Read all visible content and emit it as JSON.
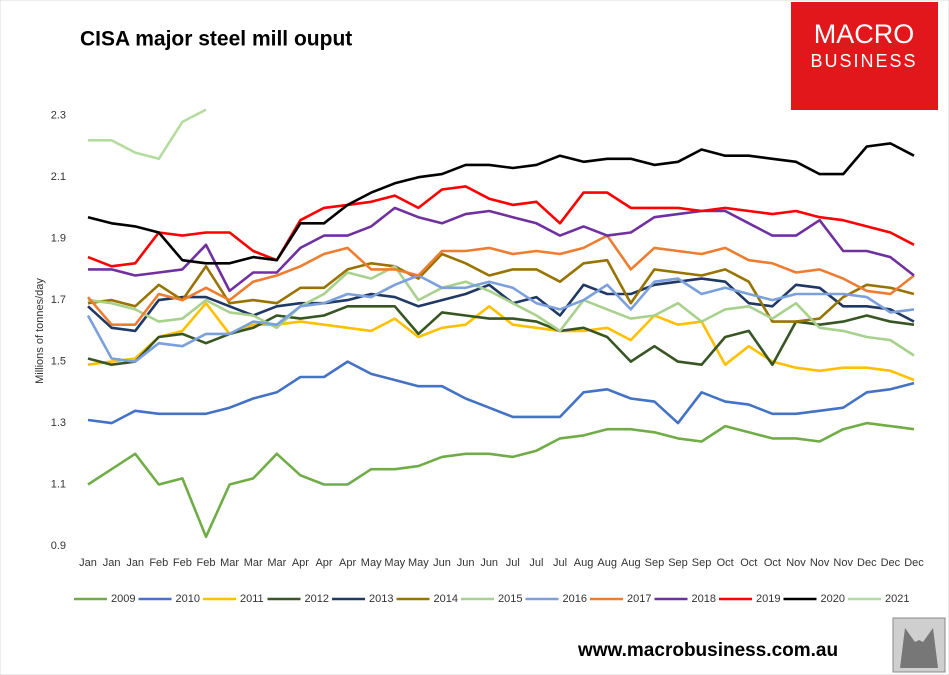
{
  "chart_data": {
    "type": "line",
    "title": "CISA major steel mill ouput",
    "y_label": "Millions of tonnes/day",
    "categories": [
      "Jan",
      "Jan",
      "Jan",
      "Feb",
      "Feb",
      "Feb",
      "Mar",
      "Mar",
      "Mar",
      "Apr",
      "Apr",
      "Apr",
      "May",
      "May",
      "May",
      "Jun",
      "Jun",
      "Jun",
      "Jul",
      "Jul",
      "Jul",
      "Aug",
      "Aug",
      "Aug",
      "Sep",
      "Sep",
      "Sep",
      "Oct",
      "Oct",
      "Oct",
      "Nov",
      "Nov",
      "Nov",
      "Dec",
      "Dec",
      "Dec"
    ],
    "ylim": [
      0.9,
      2.4
    ],
    "yticks": [
      0.9,
      1.1,
      1.3,
      1.5,
      1.7,
      1.9,
      2.1,
      2.3
    ],
    "grid": false,
    "legend": "bottom",
    "series": [
      {
        "name": "2009",
        "color": "#70ad47",
        "values": [
          1.1,
          1.15,
          1.2,
          1.1,
          1.12,
          0.93,
          1.1,
          1.12,
          1.2,
          1.13,
          1.1,
          1.1,
          1.15,
          1.15,
          1.16,
          1.19,
          1.2,
          1.2,
          1.19,
          1.21,
          1.25,
          1.26,
          1.28,
          1.28,
          1.27,
          1.25,
          1.24,
          1.29,
          1.27,
          1.25,
          1.25,
          1.24,
          1.28,
          1.3,
          1.29,
          1.28
        ]
      },
      {
        "name": "2010",
        "color": "#4472c4",
        "values": [
          1.31,
          1.3,
          1.34,
          1.33,
          1.33,
          1.33,
          1.35,
          1.38,
          1.4,
          1.45,
          1.45,
          1.5,
          1.46,
          1.44,
          1.42,
          1.42,
          1.38,
          1.35,
          1.32,
          1.32,
          1.32,
          1.4,
          1.41,
          1.38,
          1.37,
          1.3,
          1.4,
          1.37,
          1.36,
          1.33,
          1.33,
          1.34,
          1.35,
          1.4,
          1.41,
          1.43
        ]
      },
      {
        "name": "2011",
        "color": "#ffc000",
        "values": [
          1.49,
          1.5,
          1.51,
          1.58,
          1.6,
          1.69,
          1.59,
          1.62,
          1.62,
          1.63,
          1.62,
          1.61,
          1.6,
          1.64,
          1.58,
          1.61,
          1.62,
          1.68,
          1.62,
          1.61,
          1.6,
          1.6,
          1.61,
          1.57,
          1.65,
          1.62,
          1.63,
          1.49,
          1.55,
          1.5,
          1.48,
          1.47,
          1.48,
          1.48,
          1.47,
          1.44
        ]
      },
      {
        "name": "2012",
        "color": "#375623",
        "values": [
          1.51,
          1.49,
          1.5,
          1.58,
          1.59,
          1.56,
          1.59,
          1.61,
          1.65,
          1.64,
          1.65,
          1.68,
          1.68,
          1.68,
          1.59,
          1.66,
          1.65,
          1.64,
          1.64,
          1.63,
          1.6,
          1.61,
          1.58,
          1.5,
          1.55,
          1.5,
          1.49,
          1.58,
          1.6,
          1.49,
          1.63,
          1.62,
          1.63,
          1.65,
          1.63,
          1.62
        ]
      },
      {
        "name": "2013",
        "color": "#203864",
        "values": [
          1.68,
          1.61,
          1.6,
          1.7,
          1.71,
          1.71,
          1.68,
          1.65,
          1.68,
          1.69,
          1.69,
          1.7,
          1.72,
          1.71,
          1.68,
          1.7,
          1.72,
          1.75,
          1.69,
          1.71,
          1.65,
          1.75,
          1.72,
          1.72,
          1.75,
          1.76,
          1.77,
          1.76,
          1.69,
          1.68,
          1.75,
          1.74,
          1.68,
          1.68,
          1.67,
          1.63
        ]
      },
      {
        "name": "2014",
        "color": "#997300",
        "values": [
          1.69,
          1.7,
          1.68,
          1.75,
          1.7,
          1.81,
          1.69,
          1.7,
          1.69,
          1.74,
          1.74,
          1.8,
          1.82,
          1.81,
          1.77,
          1.85,
          1.82,
          1.78,
          1.8,
          1.8,
          1.76,
          1.82,
          1.83,
          1.69,
          1.8,
          1.79,
          1.78,
          1.8,
          1.76,
          1.63,
          1.63,
          1.64,
          1.71,
          1.75,
          1.74,
          1.72
        ]
      },
      {
        "name": "2015",
        "color": "#a9d18e",
        "values": [
          1.7,
          1.69,
          1.67,
          1.63,
          1.64,
          1.7,
          1.66,
          1.65,
          1.61,
          1.68,
          1.72,
          1.79,
          1.77,
          1.81,
          1.7,
          1.74,
          1.76,
          1.73,
          1.69,
          1.65,
          1.6,
          1.7,
          1.67,
          1.64,
          1.65,
          1.69,
          1.63,
          1.67,
          1.68,
          1.64,
          1.69,
          1.61,
          1.6,
          1.58,
          1.57,
          1.52
        ]
      },
      {
        "name": "2016",
        "color": "#7ba0dc",
        "values": [
          1.65,
          1.51,
          1.5,
          1.56,
          1.55,
          1.59,
          1.59,
          1.63,
          1.62,
          1.68,
          1.69,
          1.72,
          1.71,
          1.75,
          1.78,
          1.74,
          1.74,
          1.76,
          1.74,
          1.69,
          1.67,
          1.7,
          1.75,
          1.67,
          1.76,
          1.77,
          1.72,
          1.74,
          1.72,
          1.7,
          1.72,
          1.72,
          1.72,
          1.71,
          1.66,
          1.67
        ]
      },
      {
        "name": "2017",
        "color": "#ed7d31",
        "values": [
          1.71,
          1.62,
          1.62,
          1.72,
          1.7,
          1.74,
          1.7,
          1.76,
          1.78,
          1.81,
          1.85,
          1.87,
          1.8,
          1.8,
          1.78,
          1.86,
          1.86,
          1.87,
          1.85,
          1.86,
          1.85,
          1.87,
          1.91,
          1.8,
          1.87,
          1.86,
          1.85,
          1.87,
          1.83,
          1.82,
          1.79,
          1.8,
          1.77,
          1.73,
          1.72,
          1.78
        ]
      },
      {
        "name": "2018",
        "color": "#7030a0",
        "values": [
          1.8,
          1.8,
          1.78,
          1.79,
          1.8,
          1.88,
          1.73,
          1.79,
          1.79,
          1.87,
          1.91,
          1.91,
          1.94,
          2.0,
          1.97,
          1.95,
          1.98,
          1.99,
          1.97,
          1.95,
          1.91,
          1.94,
          1.91,
          1.92,
          1.97,
          1.98,
          1.99,
          1.99,
          1.95,
          1.91,
          1.91,
          1.96,
          1.86,
          1.86,
          1.84,
          1.78
        ]
      },
      {
        "name": "2019",
        "color": "#ff0000",
        "values": [
          1.84,
          1.81,
          1.82,
          1.92,
          1.91,
          1.92,
          1.92,
          1.86,
          1.83,
          1.96,
          2.0,
          2.01,
          2.02,
          2.04,
          2.0,
          2.06,
          2.07,
          2.03,
          2.01,
          2.02,
          1.95,
          2.05,
          2.05,
          2.0,
          2.0,
          2.0,
          1.99,
          2.0,
          1.99,
          1.98,
          1.99,
          1.97,
          1.96,
          1.94,
          1.92,
          1.88
        ]
      },
      {
        "name": "2020",
        "color": "#000000",
        "values": [
          1.97,
          1.95,
          1.94,
          1.92,
          1.83,
          1.82,
          1.82,
          1.84,
          1.83,
          1.95,
          1.95,
          2.01,
          2.05,
          2.08,
          2.1,
          2.11,
          2.14,
          2.14,
          2.13,
          2.14,
          2.17,
          2.15,
          2.16,
          2.16,
          2.14,
          2.15,
          2.19,
          2.17,
          2.17,
          2.16,
          2.15,
          2.11,
          2.11,
          2.2,
          2.21,
          2.17
        ]
      },
      {
        "name": "2021",
        "color": "#b4dca0",
        "values": [
          2.22,
          2.22,
          2.18,
          2.16,
          2.28,
          2.32,
          null,
          null,
          null,
          null,
          null,
          null,
          null,
          null,
          null,
          null,
          null,
          null,
          null,
          null,
          null,
          null,
          null,
          null,
          null,
          null,
          null,
          null,
          null,
          null,
          null,
          null,
          null,
          null,
          null,
          null
        ]
      }
    ]
  },
  "branding": {
    "logo_top": "MACRO",
    "logo_bottom": "BUSINESS",
    "website": "www.macrobusiness.com.au"
  }
}
